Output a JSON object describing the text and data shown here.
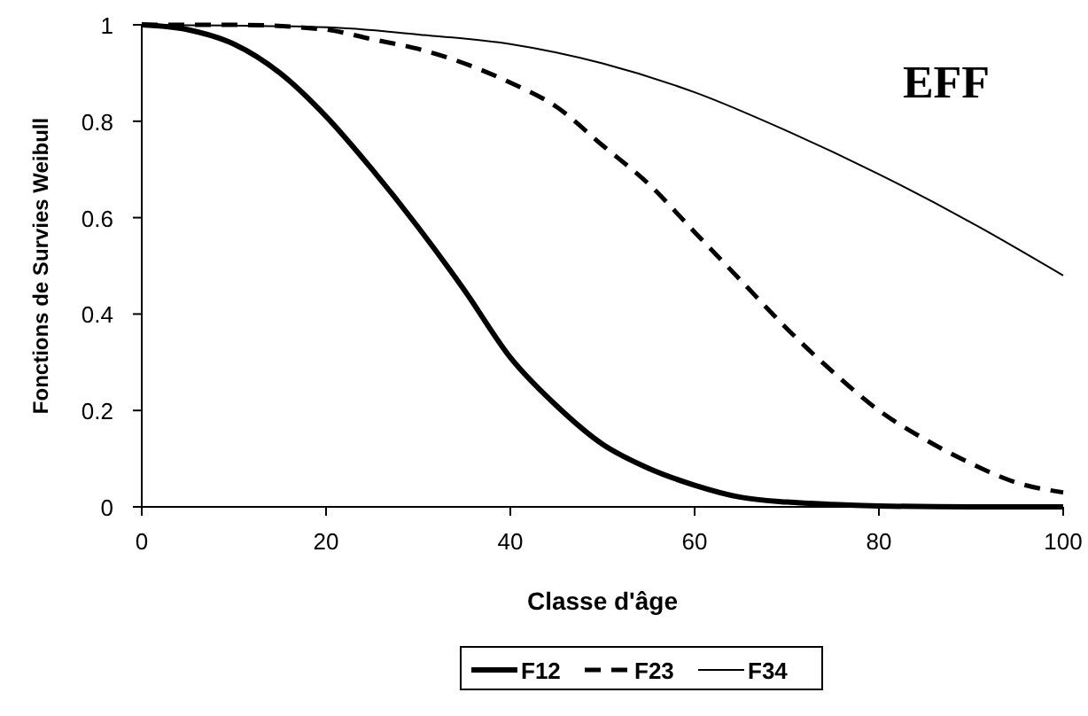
{
  "chart_data": {
    "type": "line",
    "title": "EFF",
    "xlabel": "Classe d'âge",
    "ylabel": "Fonctions de Survies Weibull",
    "xlim": [
      0,
      100
    ],
    "xticks": [
      0,
      20,
      40,
      60,
      80,
      100
    ],
    "ylim": [
      0,
      1
    ],
    "yticks": [
      0,
      0.2,
      0.4,
      0.6,
      0.8,
      1
    ],
    "grid": false,
    "legend": "bottom",
    "series": [
      {
        "name": "F12",
        "color": "#000000",
        "line_style": "solid",
        "x": [
          0,
          5,
          10,
          15,
          20,
          25,
          30,
          35,
          40,
          45,
          50,
          55,
          60,
          65,
          70,
          75,
          80,
          90,
          100
        ],
        "values": [
          1,
          0.99,
          0.96,
          0.9,
          0.81,
          0.7,
          0.58,
          0.45,
          0.31,
          0.21,
          0.13,
          0.08,
          0.045,
          0.02,
          0.01,
          0.005,
          0.002,
          0,
          0
        ]
      },
      {
        "name": "F23",
        "color": "#000000",
        "line_style": "dashed",
        "x": [
          0,
          10,
          20,
          25,
          30,
          35,
          40,
          45,
          50,
          55,
          60,
          65,
          70,
          75,
          80,
          85,
          90,
          95,
          100
        ],
        "values": [
          1,
          1,
          0.99,
          0.97,
          0.95,
          0.92,
          0.88,
          0.83,
          0.75,
          0.67,
          0.57,
          0.47,
          0.37,
          0.28,
          0.2,
          0.14,
          0.09,
          0.05,
          0.03
        ]
      },
      {
        "name": "F34",
        "color": "#000000",
        "line_style": "solid",
        "x": [
          0,
          20,
          30,
          40,
          50,
          60,
          70,
          80,
          90,
          100
        ],
        "values": [
          1,
          0.995,
          0.98,
          0.96,
          0.92,
          0.86,
          0.78,
          0.69,
          0.59,
          0.48
        ]
      }
    ]
  }
}
